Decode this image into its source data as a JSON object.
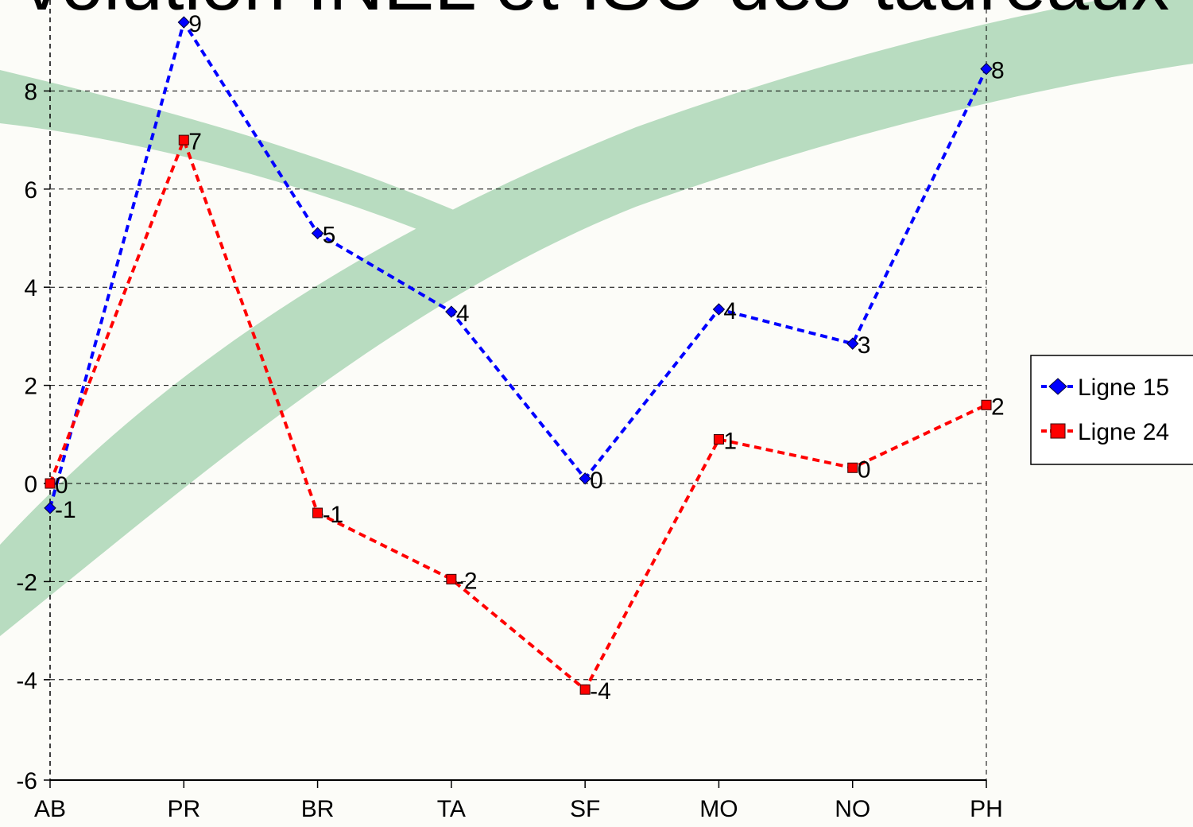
{
  "chart_data": {
    "type": "line",
    "title": "volution INEL et ISU des taureaux",
    "categories": [
      "AB",
      "PR",
      "BR",
      "TA",
      "SF",
      "MO",
      "NO",
      "PH"
    ],
    "ylim": [
      -6,
      9.5
    ],
    "yticks": [
      -6,
      -4,
      -2,
      0,
      2,
      4,
      6,
      8
    ],
    "grid": true,
    "legend_position": "right",
    "series": [
      {
        "name": "Ligne 15",
        "color": "#0000ff",
        "marker": "diamond",
        "line_style": "dashed",
        "values": [
          -0.5,
          9.4,
          5.1,
          3.5,
          0.1,
          3.55,
          2.85,
          8.45
        ],
        "labels": [
          "-1",
          "9",
          "5",
          "4",
          "0",
          "4",
          "3",
          "8"
        ]
      },
      {
        "name": "Ligne 24",
        "color": "#ff0000",
        "marker": "square",
        "line_style": "dashed",
        "values": [
          0.0,
          7.0,
          -0.6,
          -1.95,
          -4.2,
          0.9,
          0.32,
          1.6
        ],
        "labels": [
          "0",
          "7",
          "-1",
          "-2",
          "-4",
          "1",
          "0",
          "2"
        ]
      }
    ],
    "decoration": {
      "swoosh_color": "#b8dcc0",
      "background_color": "#fcfcf8"
    }
  }
}
